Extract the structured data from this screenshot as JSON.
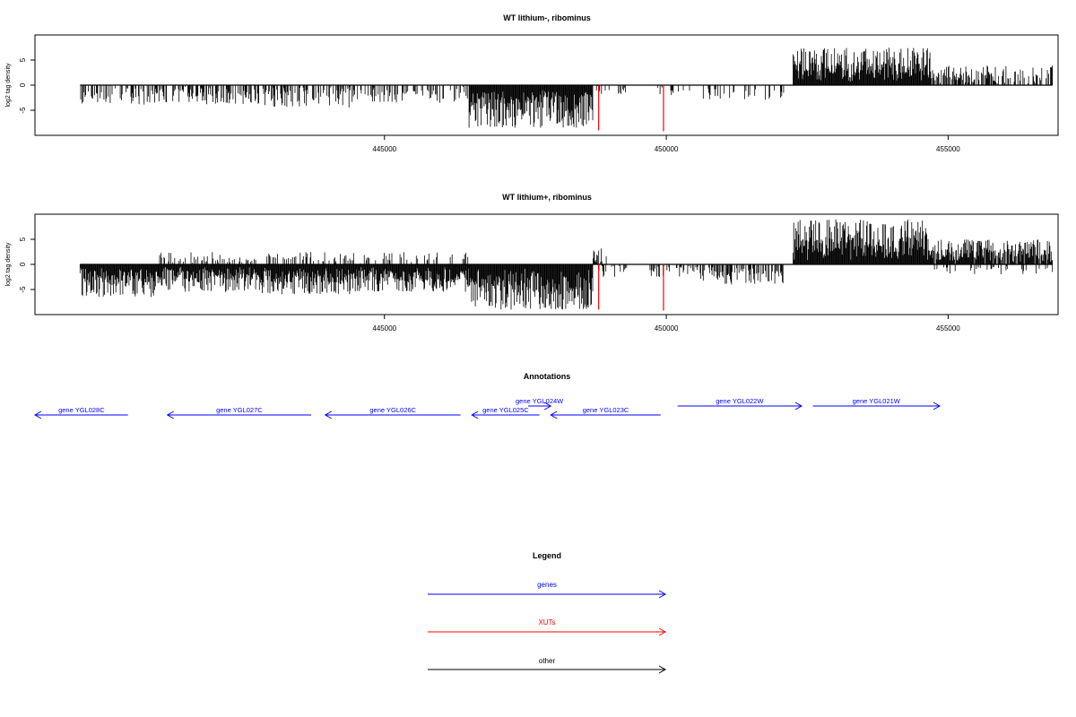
{
  "colors": {
    "genes": "#0000ff",
    "xuts": "#ff0000",
    "other": "#000000",
    "bars": "#000000",
    "frame": "#000000"
  },
  "chart_data": [
    {
      "type": "bar",
      "title": "WT lithium-, ribominus",
      "ylabel": "log2 tag density",
      "xlabel": "",
      "xlim": [
        438800,
        456950
      ],
      "ylim": [
        -10,
        10
      ],
      "yticks": [
        -5,
        0,
        5
      ],
      "xticks": [
        445000,
        450000,
        455000
      ],
      "xtick_labels": [
        "445000",
        "450000",
        "455000"
      ],
      "grid": false,
      "segments": [
        {
          "from": 439600,
          "to": 441000,
          "sign": -1,
          "peak": -4.0,
          "density": 0.35
        },
        {
          "from": 441000,
          "to": 442800,
          "sign": -1,
          "peak": -3.8,
          "density": 0.5
        },
        {
          "from": 442800,
          "to": 444500,
          "sign": -1,
          "peak": -4.5,
          "density": 0.5
        },
        {
          "from": 444500,
          "to": 446500,
          "sign": -1,
          "peak": -3.5,
          "density": 0.35
        },
        {
          "from": 446500,
          "to": 448700,
          "sign": -1,
          "peak": -8.5,
          "density": 1.0
        },
        {
          "from": 448750,
          "to": 449300,
          "sign": -1,
          "peak": -1.8,
          "density": 0.15
        },
        {
          "from": 449800,
          "to": 450600,
          "sign": -1,
          "peak": -2.0,
          "density": 0.2
        },
        {
          "from": 450600,
          "to": 452100,
          "sign": -1,
          "peak": -3.0,
          "density": 0.25
        },
        {
          "from": 452250,
          "to": 454700,
          "sign": 1,
          "peak": 7.5,
          "density": 1.0
        },
        {
          "from": 454700,
          "to": 456850,
          "sign": 1,
          "peak": 4.0,
          "density": 0.6
        }
      ],
      "red_lines": [
        {
          "x": 448800,
          "value": -9.0
        },
        {
          "x": 449950,
          "value": -9.2
        }
      ]
    },
    {
      "type": "bar",
      "title": "WT lithium+, ribominus",
      "ylabel": "log2 tag density",
      "xlabel": "",
      "xlim": [
        438800,
        456950
      ],
      "ylim": [
        -10,
        10
      ],
      "yticks": [
        -5,
        0,
        5
      ],
      "xticks": [
        445000,
        450000,
        455000
      ],
      "xtick_labels": [
        "445000",
        "450000",
        "455000"
      ],
      "grid": false,
      "segments": [
        {
          "from": 439600,
          "to": 441000,
          "sign": -1,
          "peak": -6.5,
          "density": 1.0
        },
        {
          "from": 441000,
          "to": 442800,
          "sign": -1,
          "peak": -5.5,
          "density": 1.0
        },
        {
          "from": 442800,
          "to": 444500,
          "sign": -1,
          "peak": -6.0,
          "density": 1.0
        },
        {
          "from": 444500,
          "to": 446500,
          "sign": -1,
          "peak": -5.5,
          "density": 1.0
        },
        {
          "from": 441000,
          "to": 446500,
          "sign": 1,
          "peak": 2.5,
          "density": 0.25
        },
        {
          "from": 446500,
          "to": 448700,
          "sign": -1,
          "peak": -9.0,
          "density": 1.0
        },
        {
          "from": 448700,
          "to": 449000,
          "sign": 1,
          "peak": 3.2,
          "density": 0.4
        },
        {
          "from": 448750,
          "to": 449300,
          "sign": -1,
          "peak": -2.5,
          "density": 0.3
        },
        {
          "from": 449700,
          "to": 450600,
          "sign": -1,
          "peak": -2.5,
          "density": 0.35
        },
        {
          "from": 450600,
          "to": 452100,
          "sign": -1,
          "peak": -4.0,
          "density": 0.5
        },
        {
          "from": 452250,
          "to": 454700,
          "sign": 1,
          "peak": 9.0,
          "density": 1.0
        },
        {
          "from": 454700,
          "to": 456850,
          "sign": 1,
          "peak": 5.0,
          "density": 0.9
        },
        {
          "from": 454700,
          "to": 456850,
          "sign": -1,
          "peak": -2.0,
          "density": 0.15
        }
      ],
      "red_lines": [
        {
          "x": 448800,
          "value": -9.0
        },
        {
          "x": 449950,
          "value": -9.2
        }
      ]
    }
  ],
  "annotations": {
    "title": "Annotations",
    "genes": [
      {
        "label": "gene YGL028C",
        "start": 438800,
        "end": 440450,
        "strand": "-"
      },
      {
        "label": "gene YGL027C",
        "start": 441150,
        "end": 443700,
        "strand": "-"
      },
      {
        "label": "gene YGL026C",
        "start": 443950,
        "end": 446350,
        "strand": "-"
      },
      {
        "label": "gene YGL025C",
        "start": 446550,
        "end": 447750,
        "strand": "-"
      },
      {
        "label": "gene YGL024W",
        "start": 447550,
        "end": 447950,
        "strand": "+"
      },
      {
        "label": "gene YGL023C",
        "start": 447950,
        "end": 449900,
        "strand": "-"
      },
      {
        "label": "gene YGL022W",
        "start": 450200,
        "end": 452400,
        "strand": "+"
      },
      {
        "label": "gene YGL021W",
        "start": 452600,
        "end": 454850,
        "strand": "+"
      }
    ]
  },
  "legend": {
    "title": "Legend",
    "items": [
      {
        "label": "genes",
        "color": "#0000ff"
      },
      {
        "label": "XUTs",
        "color": "#ff0000"
      },
      {
        "label": "other",
        "color": "#000000"
      }
    ]
  }
}
